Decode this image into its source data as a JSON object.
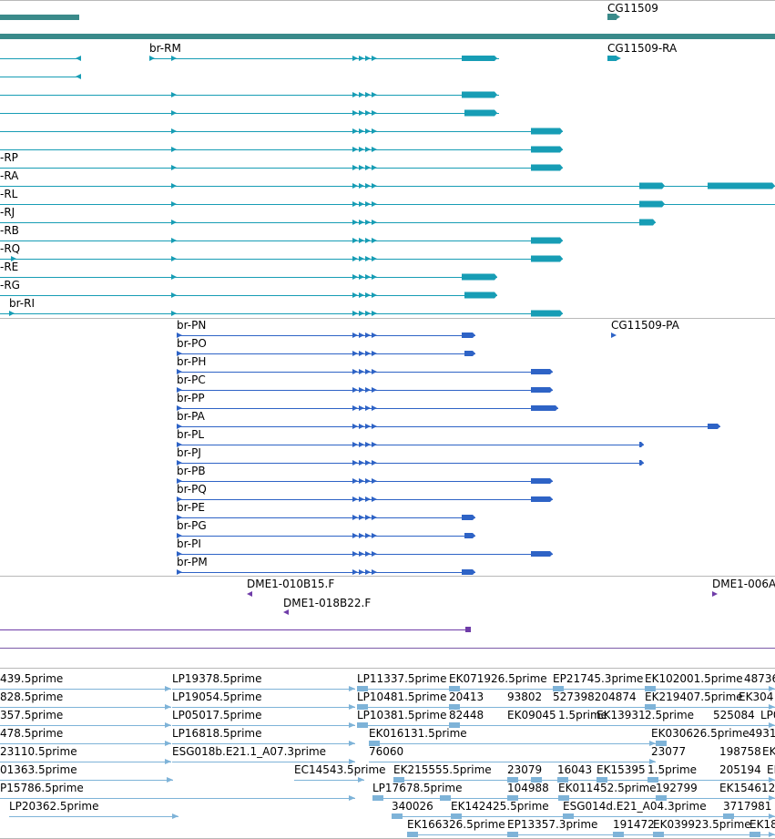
{
  "colors": {
    "gene": "#3a8a8a",
    "mrna": "#179db5",
    "protein": "#2e63c6",
    "clone_end": "#6f3ca8",
    "cdna": "#7eb3d8",
    "border": "#b9b9b9"
  },
  "gene_track": {
    "labels": [
      "CG11509"
    ]
  },
  "mrna_track": {
    "labels": [
      "br-RM",
      "CG11509-RA",
      "-RP",
      "-RA",
      "-RL",
      "-RJ",
      "-RB",
      "-RQ",
      "-RE",
      "-RG",
      "br-RI"
    ]
  },
  "protein_track": {
    "labels": [
      "br-PN",
      "CG11509-PA",
      "br-PO",
      "br-PH",
      "br-PC",
      "br-PP",
      "br-PA",
      "br-PL",
      "br-PJ",
      "br-PB",
      "br-PQ",
      "br-PE",
      "br-PG",
      "br-PI",
      "br-PM"
    ]
  },
  "clone_track": {
    "labels": [
      "DME1-010B15.F",
      "DME1-006A",
      "DME1-018B22.F"
    ]
  },
  "cdna_track": {
    "labels": [
      "439.5prime",
      "LP19378.5prime",
      "LP11337.5prime",
      "EK071926.5prime",
      "EP21745.3prime",
      "EK102001.5prime",
      "48736",
      "828.5prime",
      "LP19054.5prime",
      "LP10481.5prime",
      "20413",
      "93802",
      "527398204874",
      "EK219407.5prime",
      "EK304",
      "357.5prime",
      "LP05017.5prime",
      "LP10381.5prime",
      "82448",
      "EK09045",
      "1.5prime",
      "EK13931",
      "2.5prime",
      "525084",
      "LP0",
      "478.5prime",
      "LP16818.5prime",
      "EK016131.5prime",
      "EK030626.5prime",
      "4931",
      "23110.5prime",
      "ESG018b.E21.1_A07.3prime",
      "76060",
      "23077",
      "198758",
      "EK",
      "01363.5prime",
      "EC14543.5prime",
      "EK215555.5prime",
      "23079",
      "16043",
      "EK15395",
      "1.5prime",
      "205194",
      "EK",
      "P15786.5prime",
      "LP17678.5prime",
      "104988",
      "EK011452.5prime",
      "192799",
      "EK154612",
      "LP20362.5prime",
      "340026",
      "EK142425.5prime",
      "ESG014d.E21_A04.3prime",
      "3717981",
      "EK166326.5prime",
      "EP13357.3prime",
      "191472",
      "EK039923.5prime",
      "EK18"
    ]
  }
}
